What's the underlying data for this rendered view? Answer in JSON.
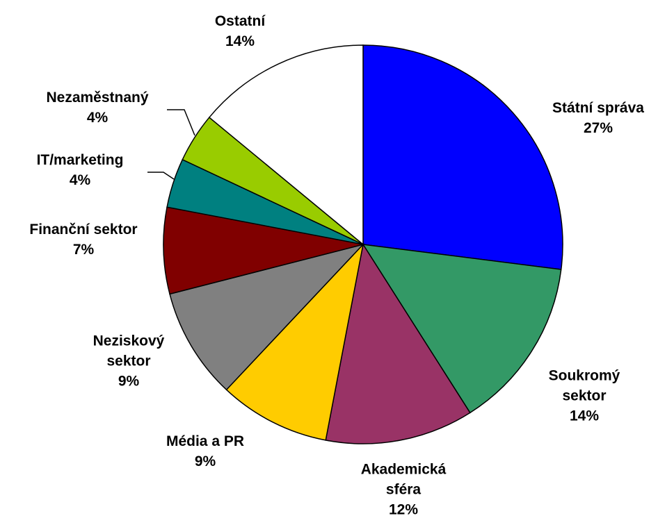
{
  "chart_data": {
    "type": "pie",
    "categories": [
      "Státní správa",
      "Soukromý sektor",
      "Akademická sféra",
      "Média a PR",
      "Neziskový sektor",
      "Finanční sektor",
      "IT/marketing",
      "Nezaměstnaný",
      "Ostatní"
    ],
    "values": [
      27,
      14,
      12,
      9,
      9,
      7,
      4,
      4,
      14
    ],
    "value_labels": [
      "27%",
      "14%",
      "12%",
      "9%",
      "9%",
      "7%",
      "4%",
      "4%",
      "14%"
    ],
    "colors": [
      "#0000ff",
      "#339966",
      "#993366",
      "#ffcc00",
      "#808080",
      "#800000",
      "#008080",
      "#99cc00",
      "#ffffff"
    ]
  }
}
